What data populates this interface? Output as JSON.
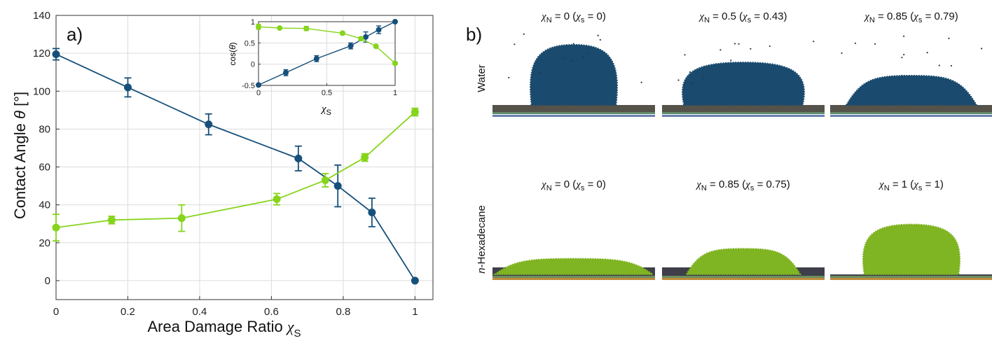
{
  "panel_a_label": "a)",
  "panel_b_label": "b)",
  "panel_b": {
    "rows": [
      {
        "label": "Water",
        "label_parts": [
          "",
          "Water"
        ],
        "color": "#1a4a6e",
        "spray": true,
        "sims": [
          {
            "caption": "χN = 0 (χs = 0)",
            "xn": "0",
            "xs": "0",
            "contact_angle_deg": 120,
            "height_frac": 0.82,
            "width_frac": 0.52
          },
          {
            "caption": "χN = 0.5 (χs = 0.43)",
            "xn": "0.5",
            "xs": "0.43",
            "contact_angle_deg": 90,
            "height_frac": 0.58,
            "width_frac": 0.73
          },
          {
            "caption": "χN = 0.85 (χs = 0.79)",
            "xn": "0.85",
            "xs": "0.79",
            "contact_angle_deg": 60,
            "height_frac": 0.4,
            "width_frac": 0.8
          }
        ]
      },
      {
        "label": "n-Hexadecane",
        "label_parts": [
          "n",
          "-Hexadecane"
        ],
        "color": "#7fb422",
        "spray": false,
        "sims": [
          {
            "caption": "χN = 0 (χs = 0)",
            "xn": "0",
            "xs": "0",
            "contact_angle_deg": 25,
            "height_frac": 0.22,
            "width_frac": 0.97
          },
          {
            "caption": "χN = 0.85 (χs = 0.75)",
            "xn": "0.85",
            "xs": "0.75",
            "contact_angle_deg": 50,
            "height_frac": 0.36,
            "width_frac": 0.7
          },
          {
            "caption": "χN = 1 (χs = 1)",
            "xn": "1",
            "xs": "1",
            "contact_angle_deg": 90,
            "height_frac": 0.7,
            "width_frac": 0.58
          }
        ]
      }
    ]
  },
  "chart_data": [
    {
      "type": "line",
      "xlabel": "Area Damage Ratio χS",
      "xlabel_text": "Area Damage Ratio ",
      "xlabel_symbol": "χ",
      "xlabel_sub": "S",
      "ylabel": "Contact Angle θ [°]",
      "ylabel_before": "Contact Angle ",
      "ylabel_symbol": "θ",
      "ylabel_after": " [°]",
      "xlim": [
        0,
        1.05
      ],
      "ylim": [
        -10,
        140
      ],
      "xticks": [
        0,
        0.2,
        0.4,
        0.6,
        0.8,
        1
      ],
      "xtick_labels": [
        "0",
        "0.2",
        "0.4",
        "0.6",
        "0.8",
        "1"
      ],
      "yticks": [
        0,
        20,
        40,
        60,
        80,
        100,
        120,
        140
      ],
      "ytick_labels": [
        "0",
        "20",
        "40",
        "60",
        "80",
        "100",
        "120",
        "140"
      ],
      "grid": true,
      "series": [
        {
          "color": "#16507a",
          "x": [
            0,
            0.2,
            0.425,
            0.675,
            0.785,
            0.88,
            1.0
          ],
          "y": [
            119.5,
            102,
            82.5,
            64.5,
            50,
            36,
            0
          ],
          "err": [
            3,
            5,
            5.5,
            6.5,
            11,
            7.5,
            0
          ]
        },
        {
          "color": "#86d41b",
          "x": [
            0,
            0.155,
            0.35,
            0.615,
            0.75,
            0.86,
            1.0
          ],
          "y": [
            28,
            32,
            33,
            43,
            53,
            65,
            89
          ],
          "err": [
            7,
            2,
            7,
            3,
            3.5,
            2,
            2
          ]
        }
      ]
    },
    {
      "type": "line",
      "inset": true,
      "xlabel": "χS",
      "xlabel_symbol": "χ",
      "xlabel_sub": "S",
      "ylabel": "cos(θ)",
      "ylabel_before": "cos(",
      "ylabel_symbol": "θ",
      "ylabel_after": ")",
      "xlim": [
        0,
        1
      ],
      "ylim": [
        -0.5,
        1
      ],
      "xticks": [
        0,
        0.5,
        1
      ],
      "xtick_labels": [
        "0",
        "0.5",
        "1"
      ],
      "yticks": [
        -0.5,
        0,
        0.5,
        1
      ],
      "ytick_labels": [
        "-0.5",
        "0",
        "0.5",
        "1"
      ],
      "grid": true,
      "series": [
        {
          "color": "#16507a",
          "x": [
            0,
            0.2,
            0.425,
            0.675,
            0.785,
            0.88,
            1.0
          ],
          "y": [
            -0.49,
            -0.2,
            0.13,
            0.43,
            0.64,
            0.81,
            1.0
          ],
          "err": [
            0,
            0.07,
            0.07,
            0.07,
            0.12,
            0.09,
            0
          ]
        },
        {
          "color": "#86d41b",
          "x": [
            0,
            0.155,
            0.35,
            0.615,
            0.75,
            0.86,
            1.0
          ],
          "y": [
            0.88,
            0.85,
            0.84,
            0.73,
            0.6,
            0.42,
            0.02
          ],
          "err": [
            0.06,
            0.02,
            0.05,
            0.03,
            0.04,
            0.03,
            0.03
          ]
        }
      ]
    }
  ]
}
